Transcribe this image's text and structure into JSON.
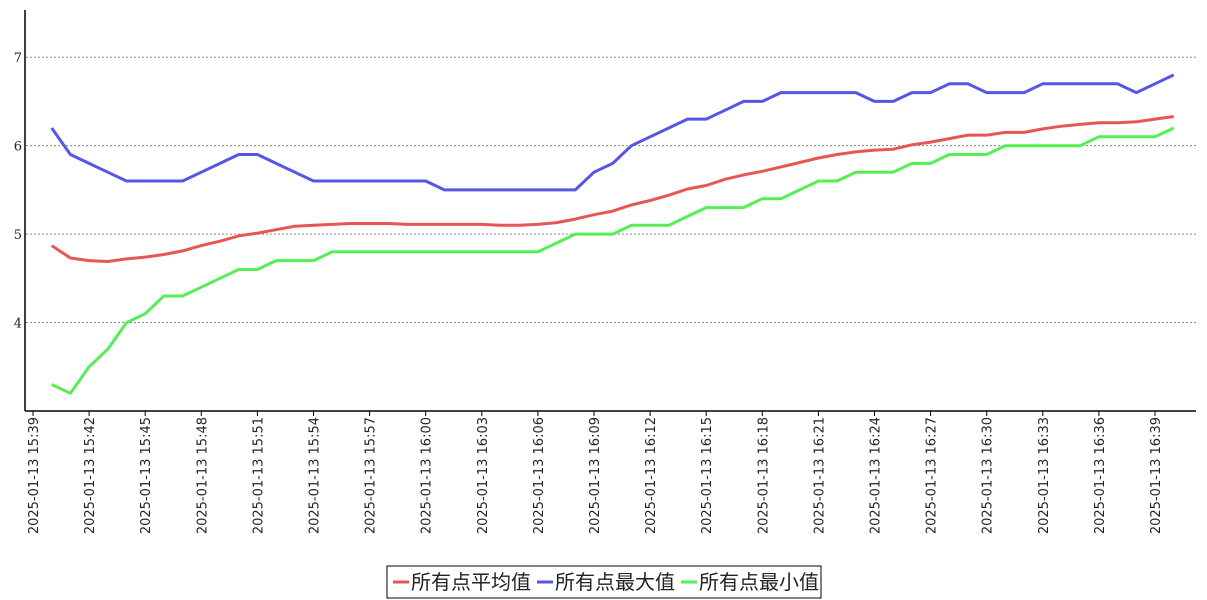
{
  "chart_data": {
    "type": "line",
    "categories": [
      "2025-01-13 15:39",
      null,
      null,
      "2025-01-13 15:42",
      null,
      null,
      "2025-01-13 15:45",
      null,
      null,
      "2025-01-13 15:48",
      null,
      null,
      "2025-01-13 15:51",
      null,
      null,
      "2025-01-13 15:54",
      null,
      null,
      "2025-01-13 15:57",
      null,
      null,
      "2025-01-13 16:00",
      null,
      null,
      "2025-01-13 16:03",
      null,
      null,
      "2025-01-13 16:06",
      null,
      null,
      "2025-01-13 16:09",
      null,
      null,
      "2025-01-13 16:12",
      null,
      null,
      "2025-01-13 16:15",
      null,
      null,
      "2025-01-13 16:18",
      null,
      null,
      "2025-01-13 16:21",
      null,
      null,
      "2025-01-13 16:24",
      null,
      null,
      "2025-01-13 16:27",
      null,
      null,
      "2025-01-13 16:30",
      null,
      null,
      "2025-01-13 16:33",
      null,
      null,
      "2025-01-13 16:36",
      null,
      null,
      "2025-01-13 16:39",
      null
    ],
    "series": [
      {
        "name": "所有点平均值",
        "color": "#e85555",
        "values": [
          null,
          4.87,
          4.73,
          4.7,
          4.69,
          4.72,
          4.74,
          4.77,
          4.81,
          4.87,
          4.92,
          4.98,
          5.01,
          5.05,
          5.09,
          5.1,
          5.11,
          5.12,
          5.12,
          5.12,
          5.11,
          5.11,
          5.11,
          5.11,
          5.11,
          5.1,
          5.1,
          5.11,
          5.13,
          5.17,
          5.22,
          5.26,
          5.33,
          5.38,
          5.44,
          5.51,
          5.55,
          5.62,
          5.67,
          5.71,
          5.76,
          5.81,
          5.86,
          5.9,
          5.93,
          5.95,
          5.96,
          6.01,
          6.04,
          6.08,
          6.12,
          6.12,
          6.15,
          6.15,
          6.19,
          6.22,
          6.24,
          6.26,
          6.26,
          6.27,
          6.3,
          6.33
        ]
      },
      {
        "name": "所有点最大值",
        "color": "#5555e8",
        "values": [
          null,
          6.2,
          5.9,
          5.8,
          5.7,
          5.6,
          5.6,
          5.6,
          5.6,
          5.7,
          5.8,
          5.9,
          5.9,
          5.8,
          5.7,
          5.6,
          5.6,
          5.6,
          5.6,
          5.6,
          5.6,
          5.6,
          5.5,
          5.5,
          5.5,
          5.5,
          5.5,
          5.5,
          5.5,
          5.5,
          5.7,
          5.8,
          6.0,
          6.1,
          6.2,
          6.3,
          6.3,
          6.4,
          6.5,
          6.5,
          6.6,
          6.6,
          6.6,
          6.6,
          6.6,
          6.5,
          6.5,
          6.6,
          6.6,
          6.7,
          6.7,
          6.6,
          6.6,
          6.6,
          6.7,
          6.7,
          6.7,
          6.7,
          6.7,
          6.6,
          6.7,
          6.8
        ]
      },
      {
        "name": "所有点最小值",
        "color": "#55ee55",
        "values": [
          null,
          3.3,
          3.2,
          3.5,
          3.7,
          4.0,
          4.1,
          4.3,
          4.3,
          4.4,
          4.5,
          4.6,
          4.6,
          4.7,
          4.7,
          4.7,
          4.8,
          4.8,
          4.8,
          4.8,
          4.8,
          4.8,
          4.8,
          4.8,
          4.8,
          4.8,
          4.8,
          4.8,
          4.9,
          5.0,
          5.0,
          5.0,
          5.1,
          5.1,
          5.1,
          5.2,
          5.3,
          5.3,
          5.3,
          5.4,
          5.4,
          5.5,
          5.6,
          5.6,
          5.7,
          5.7,
          5.7,
          5.8,
          5.8,
          5.9,
          5.9,
          5.9,
          6.0,
          6.0,
          6.0,
          6.0,
          6.0,
          6.1,
          6.1,
          6.1,
          6.1,
          6.2
        ]
      }
    ],
    "ylim": [
      3,
      7.5
    ],
    "yticks": [
      4,
      5,
      6,
      7
    ],
    "grid": true,
    "legend": "bottom"
  }
}
